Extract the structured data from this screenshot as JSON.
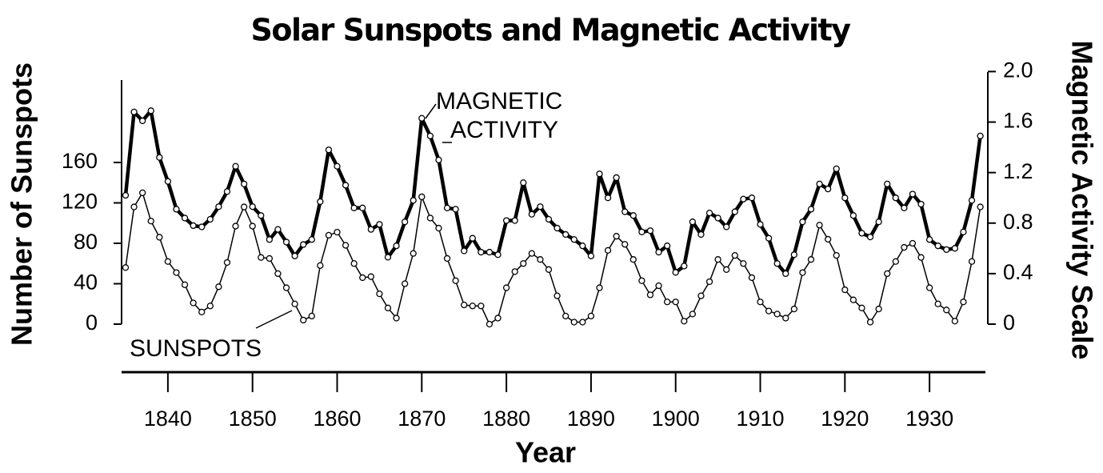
{
  "chart_data": {
    "type": "line",
    "title": "Solar Sunspots and Magnetic Activity",
    "xlabel": "Year",
    "ylabel": "Number of Sunspots",
    "y2label": "Magnetic Activity Scale",
    "annotations": [
      [
        "MAGNETIC",
        "ACTIVITY"
      ],
      [
        "SUNSPOTS"
      ]
    ],
    "x": [
      1835,
      1836,
      1837,
      1838,
      1839,
      1840,
      1841,
      1842,
      1843,
      1844,
      1845,
      1846,
      1847,
      1848,
      1849,
      1850,
      1851,
      1852,
      1853,
      1854,
      1855,
      1856,
      1857,
      1858,
      1859,
      1860,
      1861,
      1862,
      1863,
      1864,
      1865,
      1866,
      1867,
      1868,
      1869,
      1870,
      1871,
      1872,
      1873,
      1874,
      1875,
      1876,
      1877,
      1878,
      1879,
      1880,
      1881,
      1882,
      1883,
      1884,
      1885,
      1886,
      1887,
      1888,
      1889,
      1890,
      1891,
      1892,
      1893,
      1894,
      1895,
      1896,
      1897,
      1898,
      1899,
      1900,
      1901,
      1902,
      1903,
      1904,
      1905,
      1906,
      1907,
      1908,
      1909,
      1910,
      1911,
      1912,
      1913,
      1914,
      1915,
      1916,
      1917,
      1918,
      1919,
      1920,
      1921,
      1922,
      1923,
      1924,
      1925,
      1926,
      1927,
      1928,
      1929,
      1930,
      1931,
      1932,
      1933,
      1934,
      1935,
      1936
    ],
    "xlim": [
      1835,
      1936
    ],
    "xticks": [
      1840,
      1850,
      1860,
      1870,
      1880,
      1890,
      1900,
      1910,
      1920,
      1930
    ],
    "ylim": [
      0,
      250
    ],
    "yticks": [
      0,
      40,
      80,
      120,
      160
    ],
    "y2lim": [
      0,
      2
    ],
    "y2ticks": [
      0,
      0.4,
      0.8,
      1.2,
      1.6,
      {
        "value": 2,
        "label": "2.0"
      }
    ],
    "series": [
      {
        "name": "SUNSPOTS",
        "color": "#000000",
        "axis": "y",
        "values": [
          56,
          116,
          130,
          102,
          86,
          62,
          51,
          39,
          21,
          12,
          18,
          37,
          61,
          97,
          116,
          97,
          66,
          65,
          50,
          36,
          20,
          4,
          8,
          58,
          88,
          91,
          78,
          60,
          46,
          47,
          30,
          16,
          6,
          40,
          70,
          126,
          105,
          95,
          65,
          43,
          19,
          18,
          18,
          0,
          6,
          36,
          52,
          60,
          70,
          64,
          54,
          28,
          8,
          2,
          2,
          8,
          36,
          73,
          87,
          79,
          64,
          43,
          29,
          38,
          22,
          22,
          3,
          10,
          28,
          42,
          64,
          54,
          68,
          60,
          46,
          22,
          13,
          10,
          6,
          15,
          51,
          64,
          98,
          84,
          68,
          34,
          24,
          16,
          2,
          15,
          50,
          62,
          76,
          80,
          66,
          36,
          20,
          14,
          3,
          22,
          62,
          116
        ]
      },
      {
        "name": "MAGNETIC ACTIVITY",
        "color": "#000000",
        "axis": "y2",
        "values": [
          1.02,
          1.68,
          1.61,
          1.69,
          1.32,
          1.13,
          0.91,
          0.84,
          0.78,
          0.77,
          0.83,
          0.93,
          1.05,
          1.25,
          1.11,
          0.93,
          0.86,
          0.67,
          0.75,
          0.65,
          0.54,
          0.63,
          0.67,
          0.97,
          1.38,
          1.25,
          1.1,
          0.92,
          0.92,
          0.75,
          0.79,
          0.53,
          0.62,
          0.81,
          0.98,
          1.63,
          1.49,
          1.3,
          0.92,
          0.91,
          0.58,
          0.68,
          0.57,
          0.57,
          0.55,
          0.82,
          0.82,
          1.12,
          0.87,
          0.93,
          0.83,
          0.76,
          0.71,
          0.67,
          0.62,
          0.54,
          1.19,
          1.0,
          1.16,
          0.89,
          0.86,
          0.73,
          0.74,
          0.57,
          0.62,
          0.41,
          0.46,
          0.81,
          0.71,
          0.88,
          0.84,
          0.77,
          0.89,
          0.99,
          1.0,
          0.79,
          0.68,
          0.48,
          0.4,
          0.55,
          0.81,
          0.91,
          1.11,
          1.07,
          1.23,
          1.0,
          0.86,
          0.72,
          0.69,
          0.81,
          1.11,
          1.0,
          0.92,
          1.03,
          0.95,
          0.67,
          0.62,
          0.59,
          0.6,
          0.73,
          0.98,
          1.49
        ]
      }
    ]
  }
}
